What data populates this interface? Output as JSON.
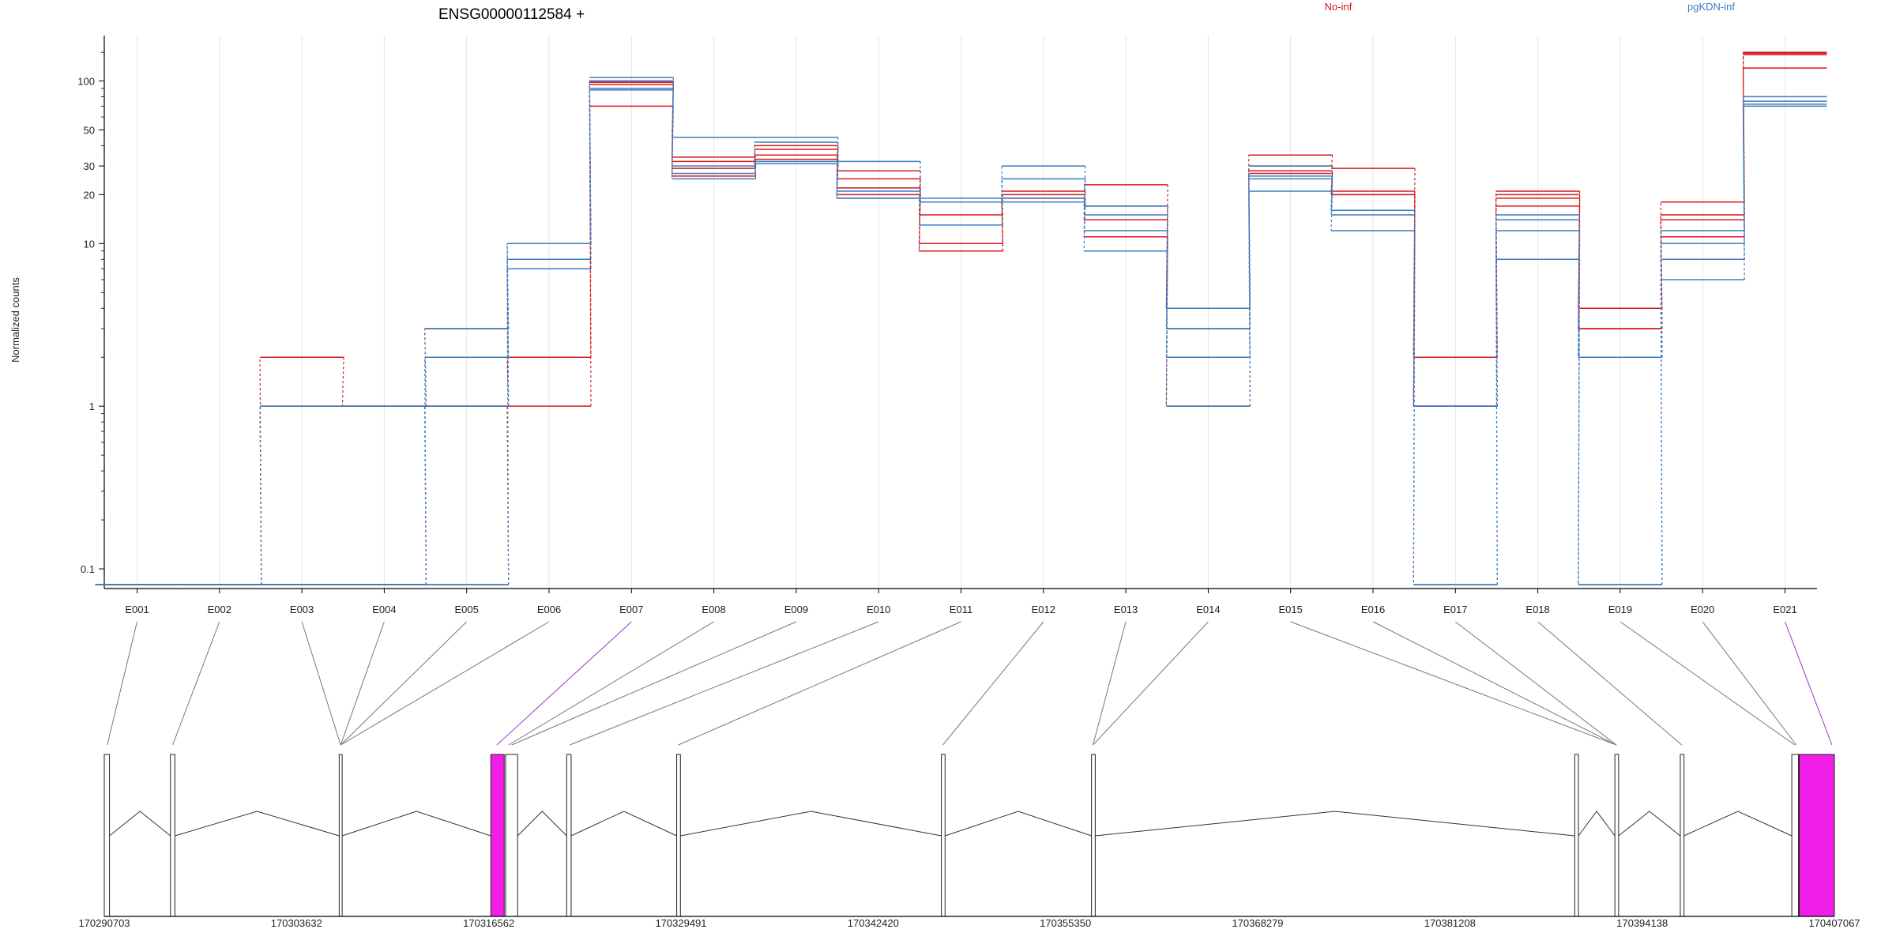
{
  "chart_data": {
    "type": "line",
    "title": "ENSG00000112584 +",
    "ylabel": "Normalized counts",
    "y_scale": "log",
    "y_ticks": [
      0.1,
      1,
      10,
      20,
      30,
      50,
      100
    ],
    "y_tick_labels": [
      "0.1",
      "1",
      "10",
      "20",
      "30",
      "50",
      "100"
    ],
    "ylim": [
      0.08,
      170
    ],
    "legend_position": "top",
    "grid": true,
    "categories": [
      "E001",
      "E002",
      "E003",
      "E004",
      "E005",
      "E006",
      "E007",
      "E008",
      "E009",
      "E010",
      "E011",
      "E012",
      "E013",
      "E014",
      "E015",
      "E016",
      "E017",
      "E018",
      "E019",
      "E020",
      "E021"
    ],
    "series": [
      {
        "name": "No-inf",
        "color": "#d7191c",
        "values": [
          0.08,
          0.08,
          0.08,
          0.08,
          0.08,
          1,
          95,
          34,
          35,
          28,
          15,
          20,
          23,
          4,
          35,
          29,
          2,
          20,
          3,
          18,
          145
        ]
      },
      {
        "name": "No-inf",
        "color": "#d7191c",
        "values": [
          0.08,
          0.08,
          2,
          1,
          1,
          8,
          100,
          32,
          40,
          25,
          10,
          21,
          17,
          4,
          30,
          21,
          2,
          21,
          4,
          15,
          150
        ]
      },
      {
        "name": "No-inf",
        "color": "#d7191c",
        "values": [
          0.08,
          0.08,
          1,
          1,
          3,
          7,
          98,
          29,
          38,
          22,
          9,
          19,
          14,
          3,
          28,
          20,
          1,
          19,
          3,
          14,
          148
        ]
      },
      {
        "name": "No-inf",
        "color": "#d7191c",
        "values": [
          0.08,
          0.08,
          0.08,
          0.08,
          1,
          2,
          70,
          26,
          33,
          20,
          9,
          18,
          11,
          1,
          27,
          20,
          1,
          17,
          2,
          11,
          120
        ]
      },
      {
        "name": "pgKDN-inf",
        "color": "#3a7dc0",
        "values": [
          0.08,
          0.08,
          1,
          1,
          3,
          10,
          105,
          45,
          45,
          32,
          18,
          30,
          17,
          4,
          30,
          16,
          1,
          15,
          2,
          12,
          80
        ]
      },
      {
        "name": "pgKDN-inf",
        "color": "#3a7dc0",
        "values": [
          0.08,
          0.08,
          0.08,
          0.08,
          2,
          8,
          100,
          30,
          42,
          21,
          13,
          25,
          15,
          3,
          26,
          16,
          0.08,
          14,
          0.08,
          10,
          75
        ]
      },
      {
        "name": "pgKDN-inf",
        "color": "#3a7dc0",
        "values": [
          0.08,
          0.08,
          0.08,
          0.08,
          1,
          10,
          90,
          27,
          32,
          19,
          19,
          19,
          9,
          2,
          21,
          12,
          1,
          8,
          2,
          8,
          70
        ]
      },
      {
        "name": "pgKDN-inf",
        "color": "#3a7dc0",
        "values": [
          0.08,
          0.08,
          0.08,
          0.08,
          0.08,
          7,
          88,
          25,
          31,
          19,
          18,
          18,
          12,
          1,
          25,
          15,
          0.08,
          12,
          0.08,
          6,
          72
        ]
      }
    ],
    "legend": [
      {
        "label": "No-inf",
        "color": "#d7191c"
      },
      {
        "label": "pgKDN-inf",
        "color": "#3a7dc0"
      }
    ],
    "gene_model": {
      "coordinate_ticks": [
        170290703,
        170303632,
        170316562,
        170329491,
        170342420,
        170355350,
        170368279,
        170381208,
        170394138,
        170407067
      ],
      "coordinate_tick_labels": [
        "170290703",
        "170303632",
        "170316562",
        "170329491",
        "170342420",
        "170355350",
        "170368279",
        "170381208",
        "170394138",
        "170407067"
      ],
      "coord_range": [
        170290703,
        170407067
      ],
      "highlight_color": "#f01ee6",
      "exons": [
        {
          "start": 170290703,
          "end": 170291053,
          "highlight": false
        },
        {
          "start": 170295153,
          "end": 170295453,
          "highlight": false
        },
        {
          "start": 170306503,
          "end": 170306703,
          "highlight": false
        },
        {
          "start": 170316703,
          "end": 170317603,
          "highlight": true
        },
        {
          "start": 170317703,
          "end": 170318503,
          "highlight": false
        },
        {
          "start": 170321803,
          "end": 170322103,
          "highlight": false
        },
        {
          "start": 170329203,
          "end": 170329453,
          "highlight": false
        },
        {
          "start": 170347003,
          "end": 170347253,
          "highlight": false
        },
        {
          "start": 170357103,
          "end": 170357353,
          "highlight": false
        },
        {
          "start": 170389603,
          "end": 170389853,
          "highlight": false
        },
        {
          "start": 170392303,
          "end": 170392553,
          "highlight": false
        },
        {
          "start": 170396703,
          "end": 170396953,
          "highlight": false
        },
        {
          "start": 170404203,
          "end": 170404653,
          "highlight": false
        },
        {
          "start": 170404703,
          "end": 170407067,
          "highlight": true
        }
      ],
      "bin_positions": [
        170290903,
        170295303,
        170306603,
        170306603,
        170306603,
        170306603,
        170317103,
        170317903,
        170318103,
        170322003,
        170329303,
        170347103,
        170357203,
        170357203,
        170392403,
        170392403,
        170392403,
        170396803,
        170404403,
        170404503,
        170406903
      ],
      "highlighted_bins": [
        "E007",
        "E021"
      ]
    }
  }
}
